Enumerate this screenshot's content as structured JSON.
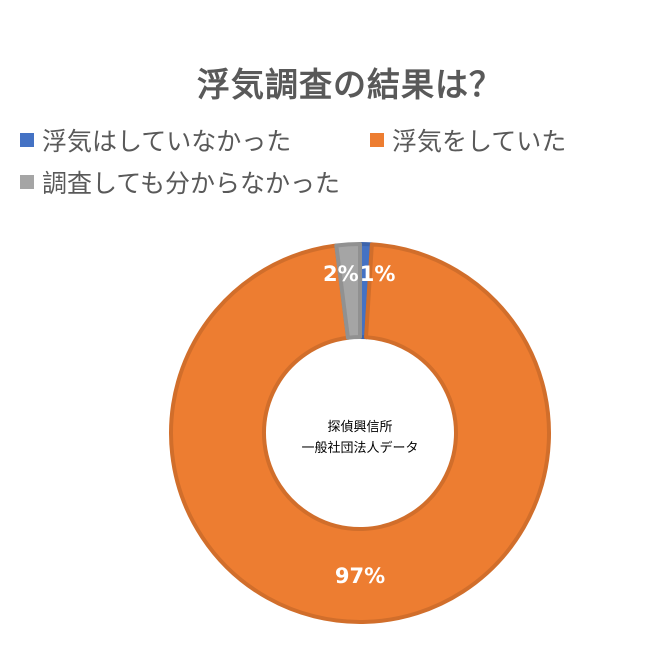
{
  "chart_data": {
    "type": "donut",
    "title": "浮気調査の結果は？",
    "categories": [
      "浮気はしていなかった",
      "浮気をしていた",
      "調査しても分からなかった"
    ],
    "values": [
      1,
      97,
      2
    ],
    "data_labels": [
      "1%",
      "97%",
      "2%"
    ],
    "colors": [
      "#4472C4",
      "#ED7D31",
      "#A5A5A5"
    ],
    "legend_position": "top",
    "center_text": [
      "探偵興信所",
      "一般社団法人データ"
    ]
  }
}
